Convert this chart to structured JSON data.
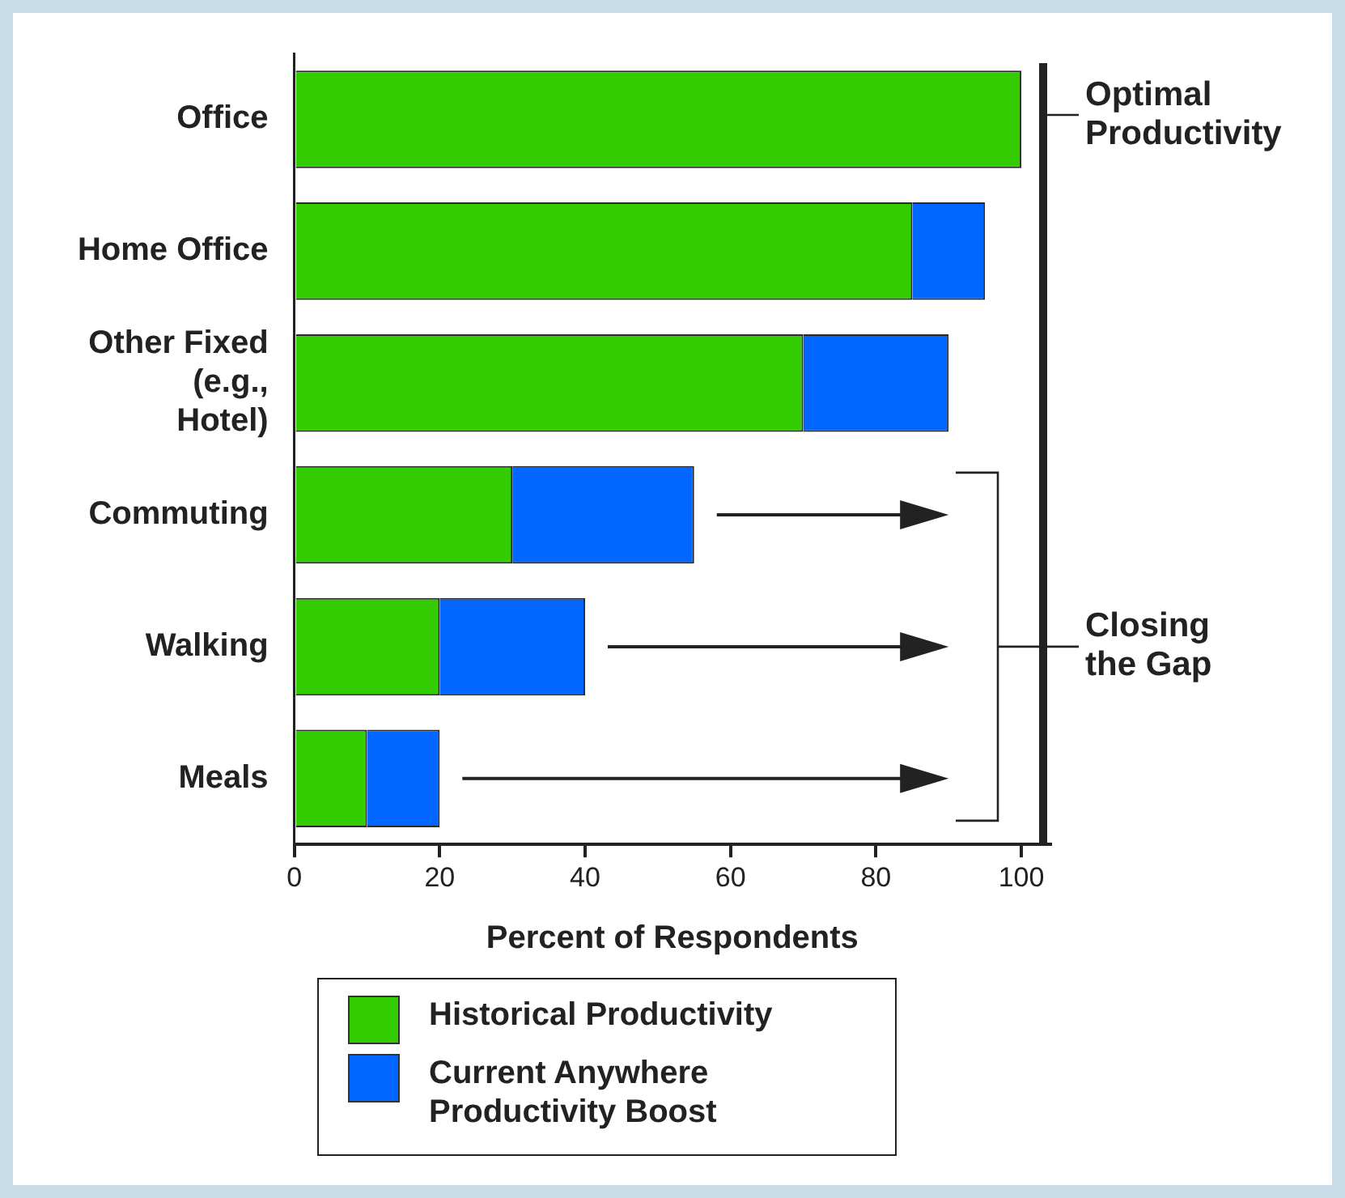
{
  "chart_data": {
    "type": "bar",
    "orientation": "horizontal",
    "stacked": true,
    "categories": [
      "Office",
      "Home Office",
      "Other Fixed (e.g., Hotel)",
      "Commuting",
      "Walking",
      "Meals"
    ],
    "series": [
      {
        "name": "Historical Productivity",
        "color": "#33cc00",
        "values": [
          100,
          85,
          70,
          30,
          20,
          10
        ]
      },
      {
        "name": "Current Anywhere Productivity Boost",
        "color": "#0066ff",
        "values": [
          0,
          10,
          20,
          25,
          20,
          10
        ]
      }
    ],
    "xlabel": "Percent of Respondents",
    "xlim": [
      0,
      104
    ],
    "xticks": [
      0,
      20,
      40,
      60,
      80,
      100
    ],
    "ref_lines": [
      {
        "axis": "x",
        "value": 103,
        "label": "Optimal Productivity"
      }
    ],
    "annotations": [
      "Closing the Gap"
    ],
    "grid": false,
    "legend": "bottom"
  }
}
